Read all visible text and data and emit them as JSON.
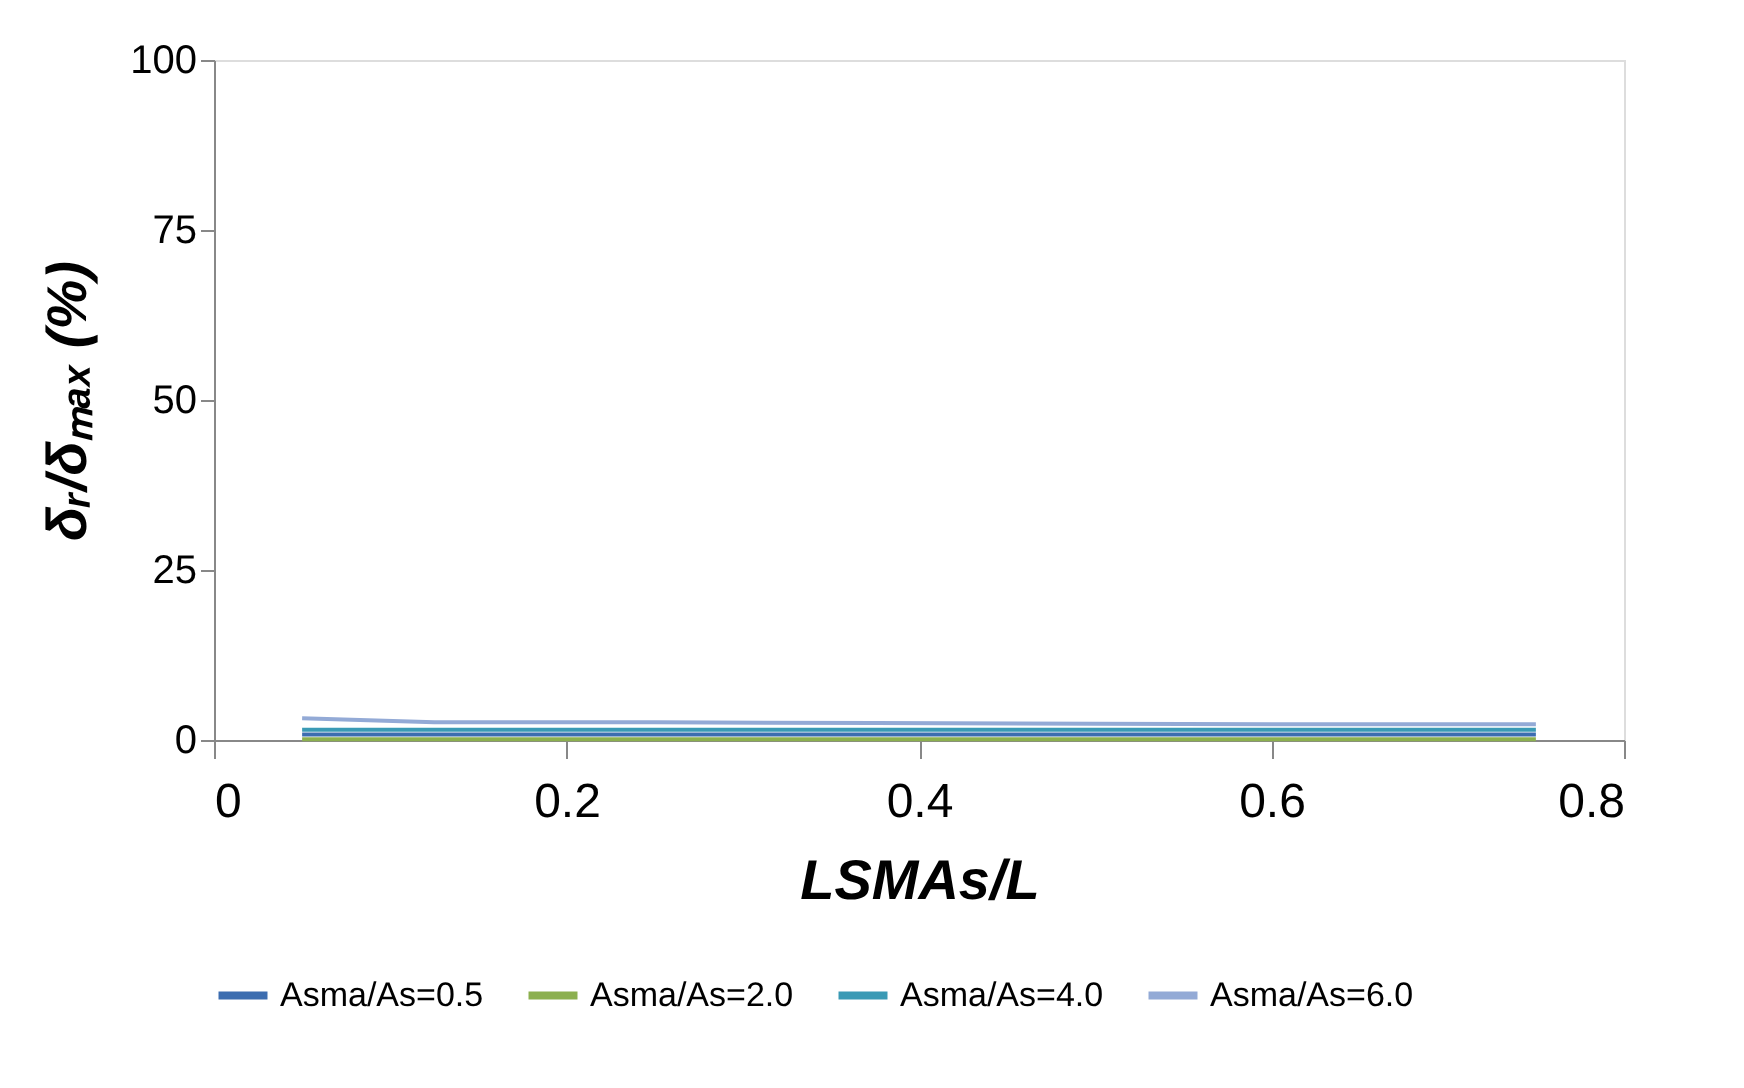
{
  "chart_data": {
    "type": "line",
    "xlabel": "LSMAs/L",
    "ylabel": "δᵣ/δₘₐₓ (%)",
    "x": [
      0.05,
      0.125,
      0.25,
      0.375,
      0.5,
      0.625,
      0.75
    ],
    "series": [
      {
        "name": "Asma/As=0.5",
        "color": "#3c6db0",
        "values": [
          0.8,
          0.8,
          0.8,
          0.8,
          0.8,
          0.8,
          0.8
        ]
      },
      {
        "name": "Asma/As=2.0",
        "color": "#8cb04f",
        "values": [
          0.1,
          0.1,
          0.1,
          0.1,
          0.1,
          0.1,
          0.1
        ]
      },
      {
        "name": "Asma/As=4.0",
        "color": "#3a9ab5",
        "values": [
          1.5,
          1.5,
          1.5,
          1.5,
          1.5,
          1.5,
          1.5
        ]
      },
      {
        "name": "Asma/As=6.0",
        "color": "#93aad6",
        "values": [
          3.2,
          2.6,
          2.6,
          2.5,
          2.4,
          2.3,
          2.3
        ]
      }
    ],
    "xlim": [
      0,
      0.8
    ],
    "xticks": [
      0,
      0.2,
      0.4,
      0.6,
      0.8
    ],
    "ylim": [
      0,
      100
    ],
    "yticks": [
      0,
      25,
      50,
      75,
      100
    ],
    "grid": false,
    "legend": "bottom",
    "marker": "none",
    "line_style": "solid"
  }
}
